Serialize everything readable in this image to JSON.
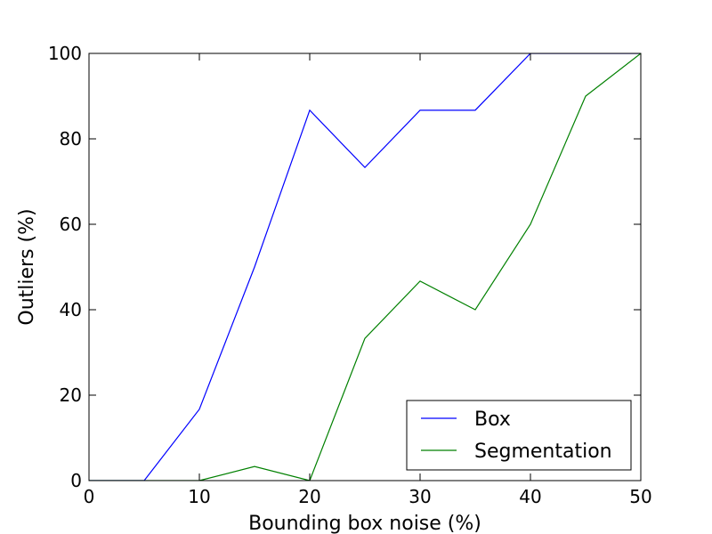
{
  "chart_data": {
    "type": "line",
    "title": "",
    "xlabel": "Bounding box noise (%)",
    "ylabel": "Outliers (%)",
    "xlim": [
      0,
      50
    ],
    "ylim": [
      0,
      100
    ],
    "x_ticks": [
      0,
      10,
      20,
      30,
      40,
      50
    ],
    "y_ticks": [
      0,
      20,
      40,
      60,
      80,
      100
    ],
    "x_tick_labels": [
      "0",
      "10",
      "20",
      "30",
      "40",
      "50"
    ],
    "y_tick_labels": [
      "0",
      "20",
      "40",
      "60",
      "80",
      "100"
    ],
    "grid": false,
    "legend_position": "bottom-right",
    "series": [
      {
        "name": "Box",
        "color": "#0000ff",
        "x": [
          0,
          5,
          10,
          15,
          20,
          25,
          30,
          35,
          40,
          45,
          50
        ],
        "y": [
          0,
          0,
          16.7,
          50,
          86.7,
          73.3,
          86.7,
          86.7,
          100,
          100,
          100
        ]
      },
      {
        "name": "Segmentation",
        "color": "#008000",
        "x": [
          0,
          5,
          10,
          15,
          20,
          25,
          30,
          35,
          40,
          45,
          50
        ],
        "y": [
          0,
          0,
          0,
          3.3,
          0,
          33.3,
          46.7,
          40,
          60,
          90,
          100
        ]
      }
    ]
  }
}
